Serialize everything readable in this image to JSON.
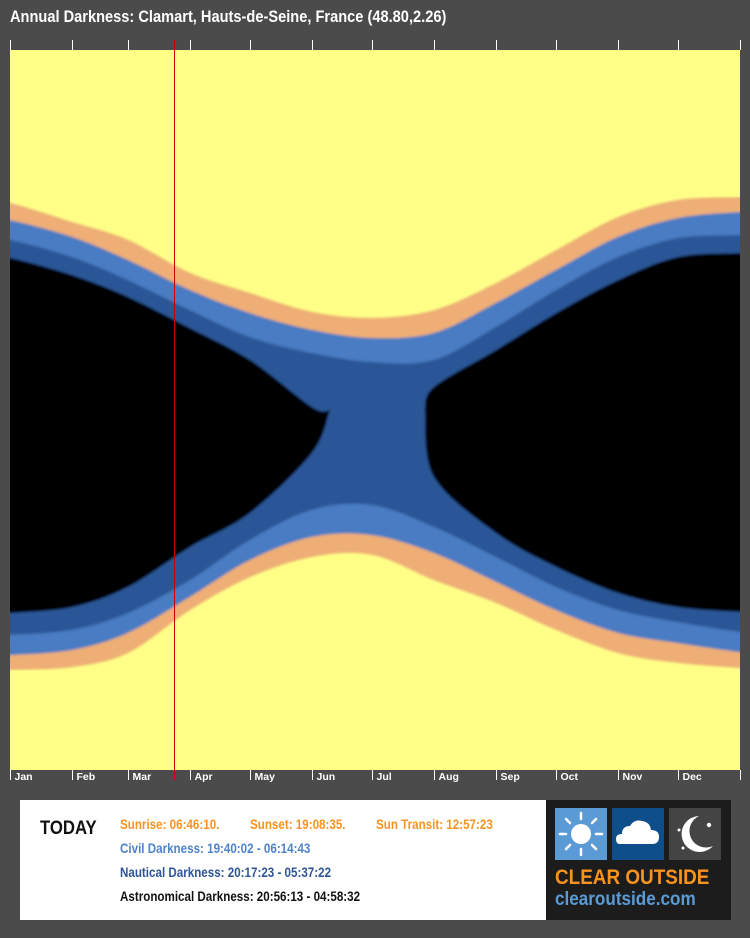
{
  "title": "Annual Darkness: Clamart, Hauts-de-Seine, France (48.80,2.26)",
  "chart_data": {
    "type": "area",
    "title": "Annual Darkness: Clamart, Hauts-de-Seine, France (48.80,2.26)",
    "x_unit": "day of year",
    "y_unit": "hour of day (noon at top, midnight centre, noon at bottom)",
    "ylim": [
      "12:00",
      "12:00 next day"
    ],
    "grid": false,
    "month_labels": [
      "Jan",
      "Feb",
      "Mar",
      "Apr",
      "May",
      "Jun",
      "Jul",
      "Aug",
      "Sep",
      "Oct",
      "Nov",
      "Dec"
    ],
    "sample_days": [
      0,
      31,
      59,
      90,
      120,
      151,
      181,
      212,
      243,
      273,
      304,
      334,
      365
    ],
    "today_day": 82,
    "evening": {
      "sunset": [
        17.1,
        17.73,
        18.33,
        19.43,
        20.1,
        20.73,
        20.93,
        20.67,
        19.77,
        18.67,
        17.57,
        17.0,
        16.9
      ],
      "civil_end": [
        17.67,
        18.23,
        19.0,
        20.0,
        20.77,
        21.33,
        21.6,
        21.43,
        20.43,
        19.33,
        18.23,
        17.6,
        17.4
      ],
      "nautical_end": [
        18.33,
        18.9,
        19.67,
        20.67,
        21.57,
        22.1,
        22.4,
        22.33,
        21.23,
        20.0,
        18.9,
        18.27,
        18.17
      ],
      "astro_end": [
        18.93,
        19.5,
        20.23,
        21.27,
        22.33,
        23.9,
        null,
        23.23,
        22.0,
        20.77,
        19.67,
        18.9,
        18.77
      ]
    },
    "morning": {
      "astro_start": [
        6.77,
        6.57,
        5.9,
        4.57,
        3.43,
        1.43,
        null,
        2.23,
        4.1,
        5.23,
        6.1,
        6.57,
        6.73
      ],
      "nautical_start": [
        7.5,
        7.33,
        6.77,
        5.67,
        4.33,
        3.33,
        3.17,
        3.9,
        4.9,
        5.9,
        6.67,
        7.07,
        7.4
      ],
      "civil_start": [
        8.17,
        8.0,
        7.43,
        6.23,
        5.0,
        4.23,
        4.17,
        4.77,
        5.73,
        6.67,
        7.43,
        7.77,
        8.07
      ],
      "sunrise": [
        8.67,
        8.57,
        8.1,
        6.67,
        5.57,
        4.9,
        4.83,
        5.67,
        6.43,
        7.33,
        8.1,
        8.43,
        8.6
      ]
    },
    "colors": {
      "day": "#ffff88",
      "twilight_sun": "#eeae74",
      "civil": "#4a7cc3",
      "nautical": "#2b5797",
      "astronomical": "#000000",
      "today_line": "#cc0000"
    }
  },
  "today": {
    "label": "TODAY",
    "sunrise": "Sunrise: 06:46:10.",
    "sunset": "Sunset: 19:08:35.",
    "transit": "Sun Transit: 12:57:23",
    "civil": "Civil Darkness: 19:40:02 - 06:14:43",
    "nautical": "Nautical Darkness: 20:17:23 - 05:37:22",
    "astronomical": "Astronomical Darkness: 20:56:13 - 04:58:32"
  },
  "logo": {
    "name": "CLEAR OUTSIDE",
    "url": "clearoutside.com",
    "icons": [
      "sun-icon",
      "cloud-icon",
      "moon-stars-icon"
    ],
    "icon_colors": [
      "#5b9bd5",
      "#0e4f8b",
      "#444444"
    ]
  }
}
